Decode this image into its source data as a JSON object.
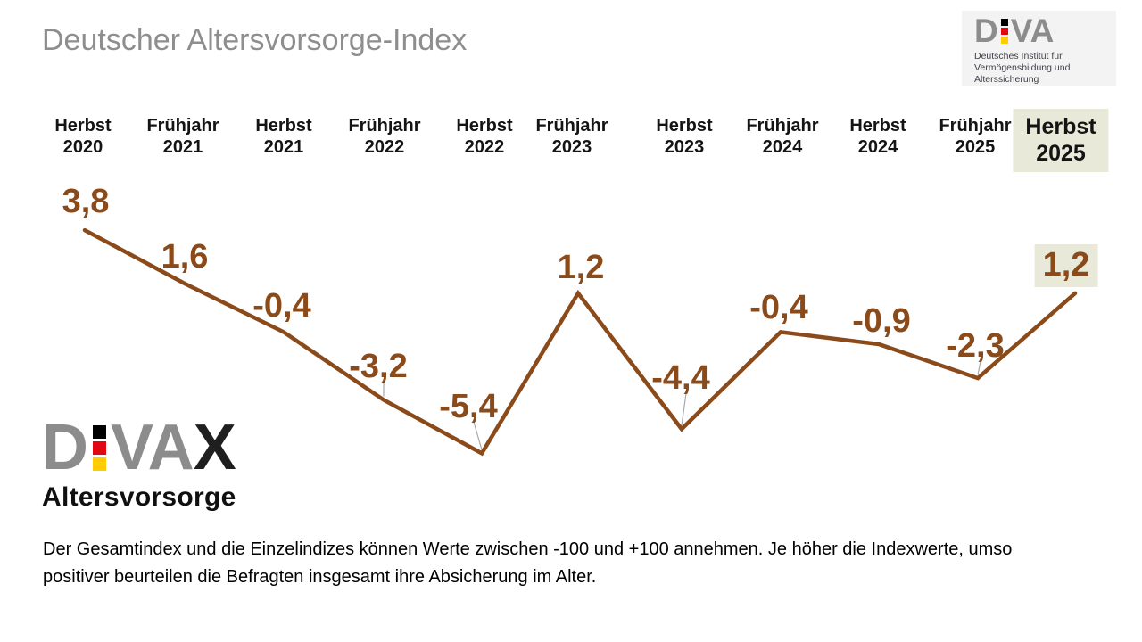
{
  "page": {
    "title": "Deutscher Altersvorsorge-Index"
  },
  "diva_logo": {
    "word_d": "D",
    "word_va": "VA",
    "subtitle_line1": "Deutsches Institut für",
    "subtitle_line2": "Vermögensbildung und Alterssicherung"
  },
  "divax_logo": {
    "word_d": "D",
    "word_va": "VA",
    "word_x": "X",
    "caption": "Altersvorsorge"
  },
  "brand_colors": {
    "accent_brown": "#8a4a1a",
    "highlight_beige": "#e9e9da",
    "logo_gray": "#8c8c8c",
    "flag_black": "#000000",
    "flag_red": "#e30613",
    "flag_gold": "#ffcc00"
  },
  "footer": {
    "note": "Der Gesamtindex und die Einzelindizes können Werte zwischen -100 und +100 annehmen. Je höher die Indexwerte, umso positiver beurteilen die Befragten insgesamt ihre Absicherung im Alter."
  },
  "chart_data": {
    "type": "line",
    "title": "Deutscher Altersvorsorge-Index",
    "categories": [
      {
        "line1": "Herbst",
        "line2": "2020"
      },
      {
        "line1": "Frühjahr",
        "line2": "2021"
      },
      {
        "line1": "Herbst",
        "line2": "2021"
      },
      {
        "line1": "Frühjahr",
        "line2": "2022"
      },
      {
        "line1": "Herbst",
        "line2": "2022"
      },
      {
        "line1": "Frühjahr",
        "line2": "2023"
      },
      {
        "line1": "Herbst",
        "line2": "2023"
      },
      {
        "line1": "Frühjahr",
        "line2": "2024"
      },
      {
        "line1": "Herbst",
        "line2": "2024"
      },
      {
        "line1": "Frühjahr",
        "line2": "2025"
      },
      {
        "line1": "Herbst",
        "line2": "2025"
      }
    ],
    "values": [
      3.8,
      1.6,
      -0.4,
      -3.2,
      -5.4,
      1.2,
      -4.4,
      -0.4,
      -0.9,
      -2.3,
      1.2
    ],
    "value_labels": [
      "3,8",
      "1,6",
      "-0,4",
      "-3,2",
      "-5,4",
      "1,2",
      "-4,4",
      "-0,4",
      "-0,9",
      "-2,3",
      "1,2"
    ],
    "highlighted_index": 10,
    "stated_value_range": [
      -100,
      100
    ],
    "line_color": "#8a4a1a",
    "value_label_color": "#8a4a1a",
    "highlight_bg": "#e9e9da",
    "grid": false,
    "legend": "none",
    "xlabel": "",
    "ylabel": ""
  }
}
